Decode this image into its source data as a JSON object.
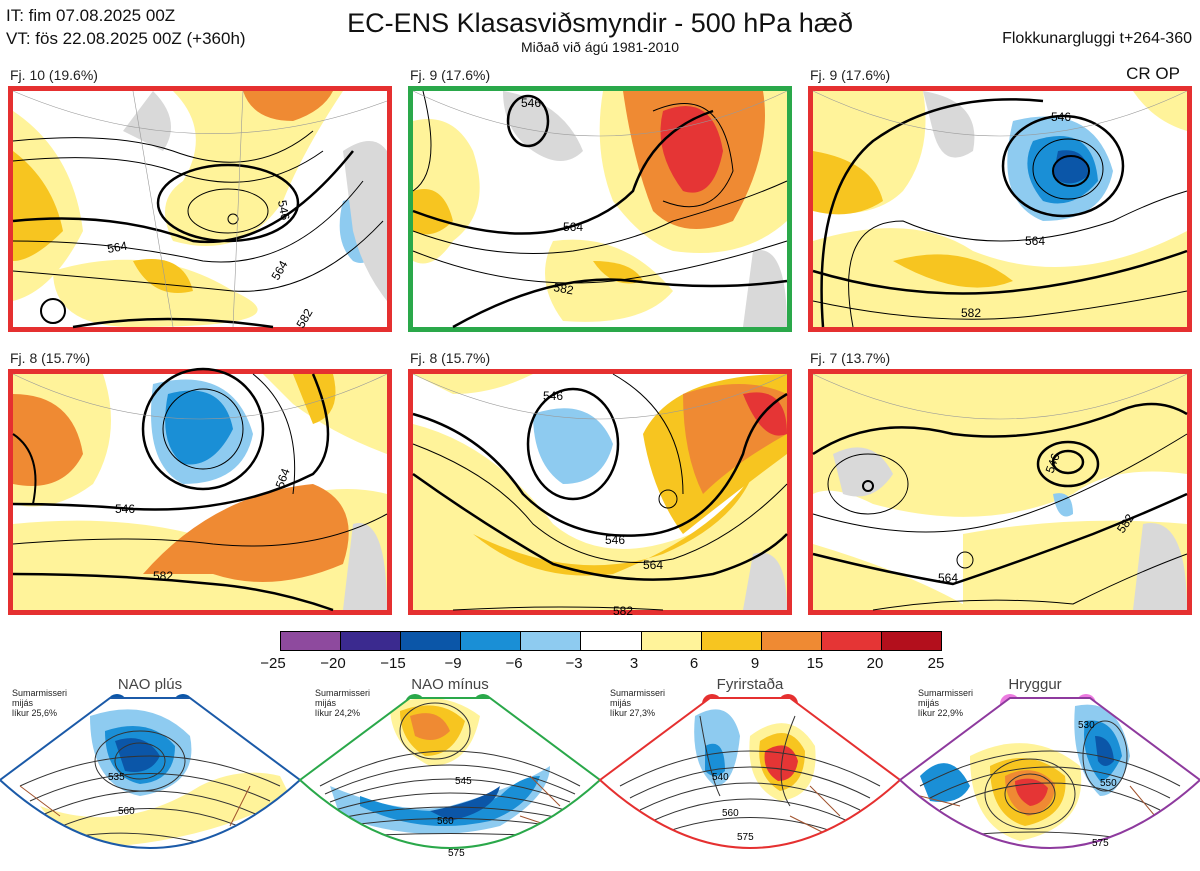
{
  "header": {
    "it_line": "IT: fim 07.08.2025 00Z",
    "vt_line": "VT: fös 22.08.2025 00Z  (+360h)",
    "title": "EC-ENS Klasasviðsmyndir - 500 hPa hæð",
    "subtitle": "Miðað við ágú 1981-2010",
    "window": "Flokkunargluggi t+264-360",
    "crop": "CR OP"
  },
  "panels": [
    {
      "label": "Fj. 10 (19.6%)",
      "frame": "red",
      "contours": [
        "564",
        "546",
        "564",
        "582"
      ]
    },
    {
      "label": "Fj. 9 (17.6%)",
      "frame": "green",
      "contours": [
        "546",
        "564",
        "582"
      ]
    },
    {
      "label": "Fj. 9 (17.6%)",
      "frame": "red",
      "contours": [
        "546",
        "564",
        "582"
      ]
    },
    {
      "label": "Fj. 8 (15.7%)",
      "frame": "red",
      "contours": [
        "546",
        "564",
        "582"
      ]
    },
    {
      "label": "Fj. 8 (15.7%)",
      "frame": "red",
      "contours": [
        "546",
        "546",
        "564",
        "582"
      ]
    },
    {
      "label": "Fj. 7 (13.7%)",
      "frame": "red",
      "contours": [
        "546",
        "564",
        "582"
      ]
    }
  ],
  "colorbar": {
    "ticks": [
      "−25",
      "−20",
      "−15",
      "−9",
      "−6",
      "−3",
      "3",
      "6",
      "9",
      "15",
      "20",
      "25"
    ],
    "colors": [
      "#8e4a9e",
      "#3b2a8f",
      "#0b56a8",
      "#1a8fd6",
      "#8ecbf0",
      "#ffffff",
      "#fff39a",
      "#f7c520",
      "#ef8a33",
      "#e53535",
      "#b30f1c"
    ]
  },
  "regimes": [
    {
      "name": "NAO plús",
      "note": [
        "Sumarmisseri",
        "mijás",
        "líkur 25,6%"
      ],
      "dot_color": "#0b56a8",
      "frame_color": "#1b5aa8",
      "contours": [
        "535",
        "560"
      ]
    },
    {
      "name": "NAO mínus",
      "note": [
        "Sumarmisseri",
        "mijás",
        "líkur 24,2%"
      ],
      "dot_color": "#2aa84a",
      "frame_color": "#2aa84a",
      "contours": [
        "545",
        "560",
        "575"
      ]
    },
    {
      "name": "Fyrirstaða",
      "note": [
        "Sumarmisseri",
        "mijás",
        "líkur 27,3%"
      ],
      "dot_color": "#e53030",
      "frame_color": "#e53030",
      "contours": [
        "540",
        "560",
        "575"
      ]
    },
    {
      "name": "Hryggur",
      "note": [
        "Sumarmisseri",
        "mijás",
        "líkur 22,9%"
      ],
      "dot_color": "#ec7be0",
      "frame_color": "#8e3a9e",
      "contours": [
        "530",
        "550",
        "575"
      ]
    }
  ]
}
